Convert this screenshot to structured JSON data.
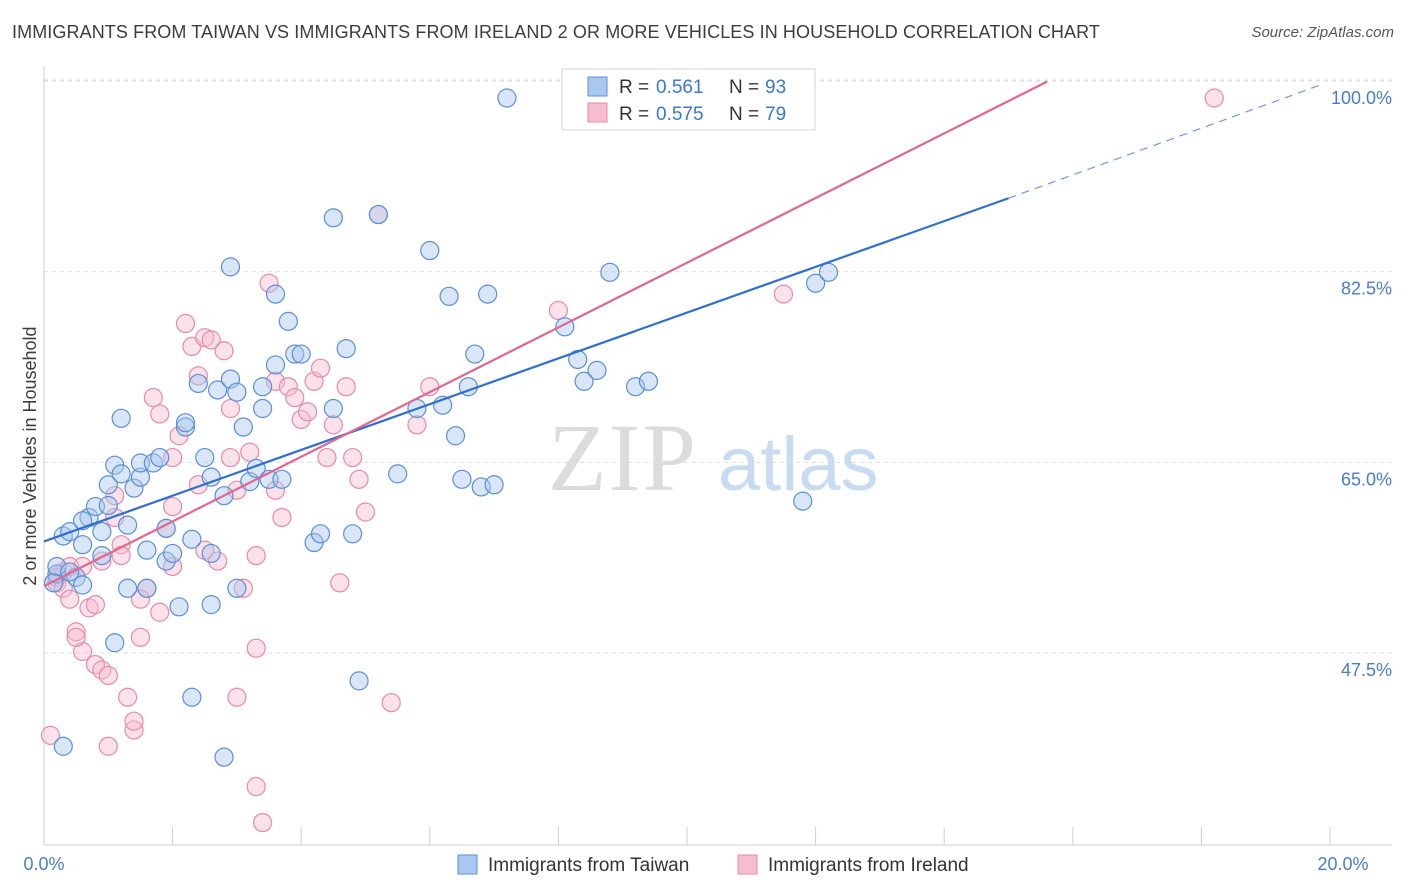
{
  "title": "IMMIGRANTS FROM TAIWAN VS IMMIGRANTS FROM IRELAND 2 OR MORE VEHICLES IN HOUSEHOLD CORRELATION CHART",
  "source": "Source: ZipAtlas.com",
  "watermark": {
    "zip": "ZIP",
    "atlas": "atlas"
  },
  "colors": {
    "taiwan_fill": "#aac8ef",
    "taiwan_stroke": "#5a8fd6",
    "taiwan_line": "#2f6fd0",
    "ireland_fill": "#f6bcd0",
    "ireland_stroke": "#e88aa9",
    "ireland_line": "#e06890",
    "grid": "#dedede",
    "axis_text": "#4a7cc9"
  },
  "legend": {
    "rows": [
      {
        "r_label": "R =",
        "r_value": "0.561",
        "n_label": "N =",
        "n_value": "93"
      },
      {
        "r_label": "R =",
        "r_value": "0.575",
        "n_label": "N =",
        "n_value": "79"
      }
    ]
  },
  "bottom_legend": [
    "Immigrants from Taiwan",
    "Immigrants from Ireland"
  ],
  "chart_data": {
    "type": "scatter",
    "title": "IMMIGRANTS FROM TAIWAN VS IMMIGRANTS FROM IRELAND 2 OR MORE VEHICLES IN HOUSEHOLD CORRELATION CHART",
    "xlabel": "",
    "ylabel": "2 or more Vehicles in Household",
    "xlim": [
      0,
      20
    ],
    "ylim": [
      30,
      102
    ],
    "x_tick_labels": [
      "0.0%",
      "20.0%"
    ],
    "y_ticks": [
      47.5,
      65.0,
      82.5,
      100.0
    ],
    "y_tick_labels": [
      "47.5%",
      "65.0%",
      "82.5%",
      "100.0%"
    ],
    "grid": true,
    "series": [
      {
        "name": "Immigrants from Taiwan",
        "R": 0.561,
        "N": 93,
        "trend": {
          "x0": 0.0,
          "y0": 59.3,
          "x1": 15.0,
          "y1": 90.8,
          "dash_x1": 19.9,
          "dash_y1": 101.3
        },
        "points": [
          [
            0.2,
            56.3
          ],
          [
            0.3,
            59.8
          ],
          [
            0.4,
            60.2
          ],
          [
            0.5,
            56.0
          ],
          [
            0.6,
            55.3
          ],
          [
            0.7,
            61.5
          ],
          [
            0.8,
            62.5
          ],
          [
            0.9,
            60.2
          ],
          [
            0.9,
            58.0
          ],
          [
            0.6,
            61.2
          ],
          [
            1.0,
            62.6
          ],
          [
            1.0,
            64.5
          ],
          [
            1.1,
            66.3
          ],
          [
            1.2,
            65.5
          ],
          [
            1.3,
            60.8
          ],
          [
            1.2,
            70.6
          ],
          [
            1.4,
            64.2
          ],
          [
            1.5,
            65.2
          ],
          [
            1.5,
            66.5
          ],
          [
            1.6,
            58.5
          ],
          [
            1.7,
            66.5
          ],
          [
            1.8,
            67.0
          ],
          [
            1.9,
            60.5
          ],
          [
            1.9,
            57.5
          ],
          [
            2.0,
            58.2
          ],
          [
            2.1,
            53.3
          ],
          [
            2.2,
            69.8
          ],
          [
            2.2,
            70.2
          ],
          [
            2.3,
            59.5
          ],
          [
            2.4,
            73.8
          ],
          [
            2.5,
            67.0
          ],
          [
            2.6,
            58.2
          ],
          [
            2.6,
            65.2
          ],
          [
            2.7,
            73.2
          ],
          [
            2.8,
            63.5
          ],
          [
            2.9,
            74.2
          ],
          [
            2.9,
            84.5
          ],
          [
            3.0,
            73.0
          ],
          [
            3.1,
            69.8
          ],
          [
            3.2,
            64.8
          ],
          [
            3.3,
            66.0
          ],
          [
            3.4,
            71.5
          ],
          [
            3.4,
            73.5
          ],
          [
            3.5,
            65.0
          ],
          [
            3.6,
            82.0
          ],
          [
            3.6,
            75.5
          ],
          [
            3.7,
            65.0
          ],
          [
            3.8,
            79.5
          ],
          [
            3.9,
            76.5
          ],
          [
            4.0,
            76.5
          ],
          [
            4.2,
            59.2
          ],
          [
            4.3,
            60.0
          ],
          [
            4.5,
            71.5
          ],
          [
            4.5,
            89.0
          ],
          [
            4.7,
            77.0
          ],
          [
            4.8,
            60.0
          ],
          [
            4.9,
            46.5
          ],
          [
            5.2,
            89.3
          ],
          [
            5.5,
            65.5
          ],
          [
            5.8,
            71.5
          ],
          [
            6.0,
            86.0
          ],
          [
            6.2,
            71.8
          ],
          [
            6.3,
            81.8
          ],
          [
            6.4,
            69.0
          ],
          [
            6.5,
            65.0
          ],
          [
            6.6,
            73.5
          ],
          [
            6.7,
            76.5
          ],
          [
            6.8,
            64.3
          ],
          [
            6.9,
            82.0
          ],
          [
            7.0,
            64.5
          ],
          [
            7.2,
            100.0
          ],
          [
            8.1,
            79.0
          ],
          [
            8.3,
            76.0
          ],
          [
            8.4,
            74.0
          ],
          [
            8.6,
            75.0
          ],
          [
            8.8,
            84.0
          ],
          [
            9.2,
            73.5
          ],
          [
            9.4,
            74.0
          ],
          [
            11.8,
            63.0
          ],
          [
            12.0,
            83.0
          ],
          [
            12.2,
            84.0
          ],
          [
            0.3,
            40.5
          ],
          [
            1.3,
            55.0
          ],
          [
            1.6,
            55.0
          ],
          [
            2.3,
            45.0
          ],
          [
            2.8,
            39.5
          ],
          [
            3.0,
            55.0
          ],
          [
            2.6,
            53.5
          ],
          [
            1.1,
            50.0
          ],
          [
            0.2,
            57.0
          ],
          [
            0.15,
            55.5
          ],
          [
            0.4,
            56.5
          ],
          [
            0.6,
            59.0
          ]
        ]
      },
      {
        "name": "Immigrants from Ireland",
        "R": 0.575,
        "N": 79,
        "trend": {
          "x0": 0.0,
          "y0": 55.2,
          "x1": 15.6,
          "y1": 101.5
        },
        "points": [
          [
            0.1,
            41.5
          ],
          [
            0.2,
            55.5
          ],
          [
            0.3,
            56.5
          ],
          [
            0.4,
            57.0
          ],
          [
            0.5,
            51.0
          ],
          [
            0.6,
            49.2
          ],
          [
            0.7,
            53.2
          ],
          [
            0.8,
            48.0
          ],
          [
            0.9,
            47.5
          ],
          [
            0.9,
            57.5
          ],
          [
            1.0,
            40.5
          ],
          [
            1.1,
            61.5
          ],
          [
            1.1,
            63.5
          ],
          [
            1.2,
            59.0
          ],
          [
            1.3,
            45.0
          ],
          [
            1.4,
            42.0
          ],
          [
            1.4,
            42.8
          ],
          [
            1.5,
            50.5
          ],
          [
            1.6,
            55.0
          ],
          [
            1.7,
            72.5
          ],
          [
            1.8,
            71.0
          ],
          [
            1.8,
            52.8
          ],
          [
            1.9,
            60.5
          ],
          [
            2.0,
            62.5
          ],
          [
            2.0,
            67.0
          ],
          [
            2.1,
            69.0
          ],
          [
            2.2,
            79.3
          ],
          [
            2.3,
            77.2
          ],
          [
            2.4,
            74.5
          ],
          [
            2.4,
            64.5
          ],
          [
            2.5,
            78.0
          ],
          [
            2.6,
            77.8
          ],
          [
            2.7,
            57.5
          ],
          [
            2.8,
            76.8
          ],
          [
            2.9,
            71.5
          ],
          [
            2.9,
            67.0
          ],
          [
            3.0,
            45.0
          ],
          [
            3.0,
            64.0
          ],
          [
            3.1,
            55.0
          ],
          [
            3.2,
            67.5
          ],
          [
            3.3,
            49.5
          ],
          [
            3.3,
            36.8
          ],
          [
            3.4,
            33.5
          ],
          [
            3.5,
            83.0
          ],
          [
            3.6,
            74.0
          ],
          [
            3.6,
            64.0
          ],
          [
            3.7,
            61.5
          ],
          [
            3.8,
            73.5
          ],
          [
            3.9,
            72.5
          ],
          [
            4.0,
            70.5
          ],
          [
            4.1,
            71.2
          ],
          [
            4.2,
            74.0
          ],
          [
            4.3,
            75.2
          ],
          [
            4.4,
            67.0
          ],
          [
            4.5,
            70.0
          ],
          [
            4.6,
            55.5
          ],
          [
            4.7,
            73.5
          ],
          [
            4.8,
            67.0
          ],
          [
            4.9,
            65.0
          ],
          [
            5.0,
            62.0
          ],
          [
            5.2,
            89.3
          ],
          [
            5.4,
            44.5
          ],
          [
            5.8,
            70.0
          ],
          [
            6.0,
            73.5
          ],
          [
            8.0,
            80.5
          ],
          [
            11.5,
            82.0
          ],
          [
            18.2,
            100.0
          ],
          [
            0.2,
            56.0
          ],
          [
            0.3,
            55.0
          ],
          [
            0.4,
            54.0
          ],
          [
            0.6,
            57.0
          ],
          [
            0.5,
            50.5
          ],
          [
            0.8,
            53.5
          ],
          [
            1.2,
            58.0
          ],
          [
            1.5,
            54.0
          ],
          [
            2.0,
            57.0
          ],
          [
            2.5,
            58.5
          ],
          [
            3.3,
            58.0
          ],
          [
            1.0,
            47.0
          ]
        ]
      }
    ]
  }
}
